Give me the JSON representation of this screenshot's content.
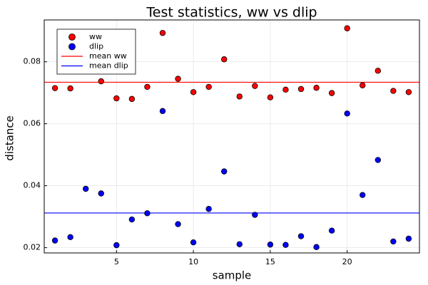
{
  "chart_data": {
    "type": "scatter",
    "title": "Test statistics, ww vs dlip",
    "xlabel": "sample",
    "ylabel": "distance",
    "xlim": [
      0.3,
      24.7
    ],
    "ylim": [
      0.0183,
      0.0935
    ],
    "xticks": [
      5,
      10,
      15,
      20
    ],
    "yticks": [
      0.02,
      0.04,
      0.06,
      0.08
    ],
    "xtick_labels": [
      "5",
      "10",
      "15",
      "20"
    ],
    "ytick_labels": [
      "0.02",
      "0.04",
      "0.06",
      "0.08"
    ],
    "grid": true,
    "legend_position": "top-left",
    "series": [
      {
        "name": "ww",
        "kind": "scatter",
        "color": "#ff0000",
        "x": [
          1,
          2,
          3,
          4,
          5,
          6,
          7,
          8,
          9,
          10,
          11,
          12,
          13,
          14,
          15,
          16,
          17,
          18,
          19,
          20,
          21,
          22,
          23,
          24
        ],
        "y": [
          0.0715,
          0.0714,
          null,
          0.0737,
          0.0682,
          0.068,
          0.0719,
          0.0893,
          0.0745,
          0.0702,
          0.0719,
          0.0808,
          0.0688,
          0.0722,
          0.0685,
          0.071,
          0.0712,
          0.0716,
          0.0699,
          0.0908,
          0.0724,
          0.0771,
          0.0706,
          0.0702
        ]
      },
      {
        "name": "dlip",
        "kind": "scatter",
        "color": "#0000ff",
        "x": [
          1,
          2,
          3,
          4,
          5,
          6,
          7,
          8,
          9,
          10,
          11,
          12,
          13,
          14,
          15,
          16,
          17,
          18,
          19,
          20,
          21,
          22,
          23,
          24
        ],
        "y": [
          0.0223,
          0.0234,
          0.039,
          0.0375,
          0.0208,
          0.0291,
          0.0311,
          0.0641,
          0.0276,
          0.0217,
          0.0325,
          0.0446,
          0.0211,
          0.0306,
          0.021,
          0.0209,
          0.0237,
          0.0202,
          0.0255,
          0.0633,
          0.037,
          0.0483,
          0.022,
          0.0229
        ]
      },
      {
        "name": "mean ww",
        "kind": "hline",
        "color": "#ff0000",
        "y": 0.0734
      },
      {
        "name": "mean dlip",
        "kind": "hline",
        "color": "#0000ff",
        "y": 0.0312
      }
    ]
  }
}
